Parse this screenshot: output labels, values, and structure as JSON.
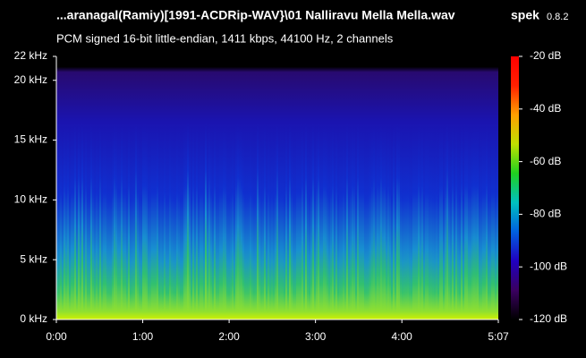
{
  "chart_data": {
    "type": "spectrogram",
    "title": "...aranagal(Ramiy)[1991-ACDRip-WAV}\\01 Nalliravu Mella Mella.wav",
    "app": "spek",
    "version": "0.8.2",
    "subtitle": "PCM signed 16-bit little-endian, 1411 kbps, 44100 Hz, 2 channels",
    "xlim": [
      0,
      307
    ],
    "xticks": [
      {
        "value": 0,
        "label": "0:00"
      },
      {
        "value": 60,
        "label": "1:00"
      },
      {
        "value": 120,
        "label": "2:00"
      },
      {
        "value": 180,
        "label": "3:00"
      },
      {
        "value": 240,
        "label": "4:00"
      },
      {
        "value": 307,
        "label": "5:07"
      }
    ],
    "ylim": [
      0,
      22
    ],
    "yticks": [
      {
        "value": 0,
        "label": "0 kHz"
      },
      {
        "value": 5,
        "label": "5 kHz"
      },
      {
        "value": 10,
        "label": "10 kHz"
      },
      {
        "value": 15,
        "label": "15 kHz"
      },
      {
        "value": 20,
        "label": "20 kHz"
      },
      {
        "value": 22,
        "label": "22 kHz"
      }
    ],
    "clim": [
      -120,
      -20
    ],
    "cticks": [
      {
        "value": -20,
        "label": "-20 dB"
      },
      {
        "value": -40,
        "label": "-40 dB"
      },
      {
        "value": -60,
        "label": "-60 dB"
      },
      {
        "value": -80,
        "label": "-80 dB"
      },
      {
        "value": -100,
        "label": "-100 dB"
      },
      {
        "value": -120,
        "label": "-120 dB"
      }
    ],
    "colorbar_colors": [
      "#000000",
      "#3a0060",
      "#2000c0",
      "#0060e0",
      "#00c0c0",
      "#20d020",
      "#c0e000",
      "#ffa000",
      "#ff2000",
      "#ff0000"
    ]
  }
}
